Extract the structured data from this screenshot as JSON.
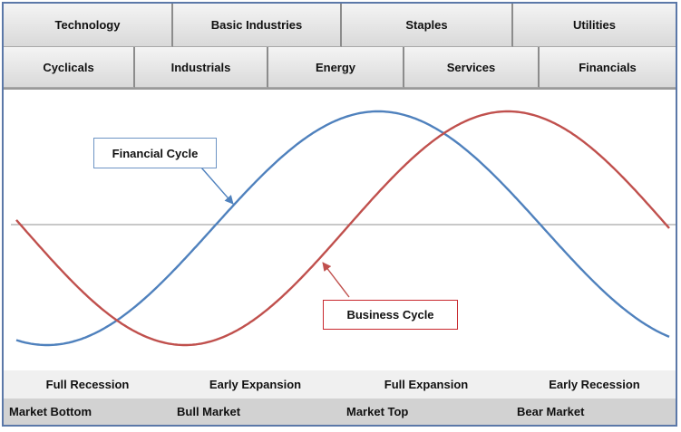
{
  "sectors_top": [
    "Technology",
    "Basic Industries",
    "Staples",
    "Utilities"
  ],
  "sectors_second": [
    "Cyclicals",
    "Industrials",
    "Energy",
    "Services",
    "Financials"
  ],
  "callouts": {
    "financial": "Financial Cycle",
    "business": "Business Cycle"
  },
  "phases": [
    "Full Recession",
    "Early Expansion",
    "Full Expansion",
    "Early Recession"
  ],
  "market_phases": [
    "Market Bottom",
    "Bull Market",
    "Market Top",
    "Bear Market"
  ],
  "colors": {
    "financial_cycle": "#4f81bd",
    "business_cycle": "#c0504d",
    "baseline": "#a6a6a6"
  }
}
